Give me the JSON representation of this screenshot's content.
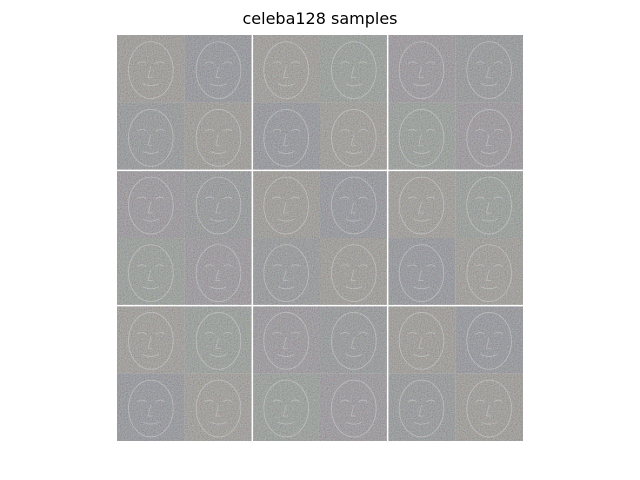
{
  "figure": {
    "title": "celeba128 samples"
  },
  "colors": {
    "background": "#ffffff",
    "tile_base": "#808080",
    "grid_line": "#ffffff"
  },
  "grid": {
    "blocks_per_side": 3,
    "faces_per_block_side": 2,
    "sample_count": 36
  }
}
